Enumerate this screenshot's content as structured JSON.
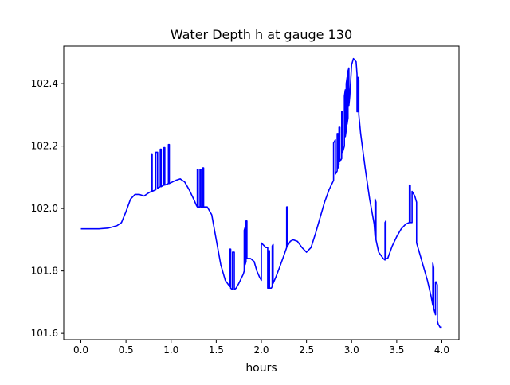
{
  "chart_data": {
    "type": "line",
    "title": "Water Depth h at gauge 130",
    "xlabel": "hours",
    "ylabel": "",
    "xlim": [
      -0.19,
      4.19
    ],
    "ylim": [
      101.58,
      102.52
    ],
    "xticks": [
      0.0,
      0.5,
      1.0,
      1.5,
      2.0,
      2.5,
      3.0,
      3.5,
      4.0
    ],
    "xtick_labels": [
      "0.0",
      "0.5",
      "1.0",
      "1.5",
      "2.0",
      "2.5",
      "3.0",
      "3.5",
      "4.0"
    ],
    "yticks": [
      101.6,
      101.8,
      102.0,
      102.2,
      102.4
    ],
    "ytick_labels": [
      "101.6",
      "101.8",
      "102.0",
      "102.2",
      "102.4"
    ],
    "grid": false,
    "legend": "none",
    "series": [
      {
        "color": "#0000ff",
        "points": [
          [
            0.0,
            101.935
          ],
          [
            0.1,
            101.935
          ],
          [
            0.2,
            101.935
          ],
          [
            0.3,
            101.937
          ],
          [
            0.4,
            101.945
          ],
          [
            0.45,
            101.955
          ],
          [
            0.5,
            101.99
          ],
          [
            0.55,
            102.03
          ],
          [
            0.6,
            102.045
          ],
          [
            0.65,
            102.045
          ],
          [
            0.7,
            102.04
          ],
          [
            0.75,
            102.05
          ],
          [
            0.78,
            102.055
          ],
          [
            0.78,
            102.175
          ],
          [
            0.79,
            102.175
          ],
          [
            0.79,
            102.055
          ],
          [
            0.83,
            102.06
          ],
          [
            0.83,
            102.18
          ],
          [
            0.85,
            102.18
          ],
          [
            0.85,
            102.065
          ],
          [
            0.88,
            102.07
          ],
          [
            0.88,
            102.19
          ],
          [
            0.89,
            102.19
          ],
          [
            0.89,
            102.07
          ],
          [
            0.92,
            102.075
          ],
          [
            0.92,
            102.195
          ],
          [
            0.93,
            102.195
          ],
          [
            0.93,
            102.075
          ],
          [
            0.97,
            102.08
          ],
          [
            0.97,
            102.205
          ],
          [
            0.98,
            102.205
          ],
          [
            0.98,
            102.08
          ],
          [
            1.05,
            102.09
          ],
          [
            1.1,
            102.095
          ],
          [
            1.15,
            102.085
          ],
          [
            1.2,
            102.06
          ],
          [
            1.25,
            102.03
          ],
          [
            1.28,
            102.01
          ],
          [
            1.29,
            102.005
          ],
          [
            1.29,
            102.125
          ],
          [
            1.3,
            102.125
          ],
          [
            1.3,
            102.005
          ],
          [
            1.32,
            102.005
          ],
          [
            1.32,
            102.125
          ],
          [
            1.33,
            102.125
          ],
          [
            1.33,
            102.005
          ],
          [
            1.35,
            102.005
          ],
          [
            1.35,
            102.13
          ],
          [
            1.36,
            102.13
          ],
          [
            1.36,
            102.005
          ],
          [
            1.4,
            102.005
          ],
          [
            1.45,
            101.98
          ],
          [
            1.5,
            101.9
          ],
          [
            1.55,
            101.82
          ],
          [
            1.6,
            101.77
          ],
          [
            1.65,
            101.75
          ],
          [
            1.65,
            101.87
          ],
          [
            1.66,
            101.87
          ],
          [
            1.66,
            101.745
          ],
          [
            1.68,
            101.74
          ],
          [
            1.68,
            101.86
          ],
          [
            1.7,
            101.86
          ],
          [
            1.7,
            101.74
          ],
          [
            1.72,
            101.745
          ],
          [
            1.75,
            101.76
          ],
          [
            1.8,
            101.79
          ],
          [
            1.81,
            101.8
          ],
          [
            1.81,
            101.93
          ],
          [
            1.82,
            101.94
          ],
          [
            1.82,
            101.82
          ],
          [
            1.83,
            101.83
          ],
          [
            1.83,
            101.96
          ],
          [
            1.84,
            101.96
          ],
          [
            1.84,
            101.84
          ],
          [
            1.88,
            101.84
          ],
          [
            1.92,
            101.83
          ],
          [
            1.95,
            101.8
          ],
          [
            1.98,
            101.78
          ],
          [
            2.0,
            101.77
          ],
          [
            2.0,
            101.89
          ],
          [
            2.05,
            101.875
          ],
          [
            2.07,
            101.875
          ],
          [
            2.07,
            101.745
          ],
          [
            2.08,
            101.745
          ],
          [
            2.08,
            101.865
          ],
          [
            2.09,
            101.865
          ],
          [
            2.09,
            101.745
          ],
          [
            2.11,
            101.745
          ],
          [
            2.12,
            101.75
          ],
          [
            2.12,
            101.88
          ],
          [
            2.13,
            101.885
          ],
          [
            2.13,
            101.76
          ],
          [
            2.16,
            101.78
          ],
          [
            2.2,
            101.81
          ],
          [
            2.25,
            101.85
          ],
          [
            2.28,
            101.875
          ],
          [
            2.28,
            102.005
          ],
          [
            2.29,
            102.005
          ],
          [
            2.29,
            101.88
          ],
          [
            2.32,
            101.895
          ],
          [
            2.35,
            101.9
          ],
          [
            2.4,
            101.895
          ],
          [
            2.45,
            101.875
          ],
          [
            2.5,
            101.86
          ],
          [
            2.55,
            101.875
          ],
          [
            2.6,
            101.92
          ],
          [
            2.65,
            101.97
          ],
          [
            2.7,
            102.02
          ],
          [
            2.75,
            102.06
          ],
          [
            2.8,
            102.09
          ],
          [
            2.8,
            102.21
          ],
          [
            2.82,
            102.22
          ],
          [
            2.82,
            102.11
          ],
          [
            2.84,
            102.12
          ],
          [
            2.84,
            102.24
          ],
          [
            2.85,
            102.24
          ],
          [
            2.85,
            102.13
          ],
          [
            2.86,
            102.14
          ],
          [
            2.86,
            102.26
          ],
          [
            2.87,
            102.26
          ],
          [
            2.87,
            102.15
          ],
          [
            2.89,
            102.16
          ],
          [
            2.89,
            102.31
          ],
          [
            2.9,
            102.31
          ],
          [
            2.9,
            102.18
          ],
          [
            2.92,
            102.2
          ],
          [
            2.92,
            102.36
          ],
          [
            2.93,
            102.38
          ],
          [
            2.93,
            102.23
          ],
          [
            2.94,
            102.25
          ],
          [
            2.94,
            102.4
          ],
          [
            2.95,
            102.42
          ],
          [
            2.95,
            102.27
          ],
          [
            2.96,
            102.29
          ],
          [
            2.96,
            102.44
          ],
          [
            2.97,
            102.45
          ],
          [
            2.97,
            102.33
          ],
          [
            2.98,
            102.36
          ],
          [
            3.0,
            102.46
          ],
          [
            3.02,
            102.48
          ],
          [
            3.05,
            102.47
          ],
          [
            3.06,
            102.43
          ],
          [
            3.06,
            102.31
          ],
          [
            3.07,
            102.31
          ],
          [
            3.07,
            102.42
          ],
          [
            3.08,
            102.41
          ],
          [
            3.08,
            102.3
          ],
          [
            3.1,
            102.24
          ],
          [
            3.15,
            102.13
          ],
          [
            3.2,
            102.03
          ],
          [
            3.25,
            101.95
          ],
          [
            3.26,
            101.91
          ],
          [
            3.26,
            102.03
          ],
          [
            3.27,
            102.02
          ],
          [
            3.27,
            101.9
          ],
          [
            3.3,
            101.86
          ],
          [
            3.35,
            101.84
          ],
          [
            3.37,
            101.835
          ],
          [
            3.37,
            101.955
          ],
          [
            3.38,
            101.96
          ],
          [
            3.38,
            101.84
          ],
          [
            3.4,
            101.84
          ],
          [
            3.45,
            101.88
          ],
          [
            3.5,
            101.91
          ],
          [
            3.55,
            101.935
          ],
          [
            3.6,
            101.95
          ],
          [
            3.64,
            101.955
          ],
          [
            3.64,
            102.075
          ],
          [
            3.65,
            102.075
          ],
          [
            3.65,
            101.955
          ],
          [
            3.67,
            101.955
          ],
          [
            3.67,
            102.055
          ],
          [
            3.7,
            102.04
          ],
          [
            3.72,
            102.02
          ],
          [
            3.72,
            101.89
          ],
          [
            3.78,
            101.83
          ],
          [
            3.84,
            101.77
          ],
          [
            3.88,
            101.72
          ],
          [
            3.9,
            101.69
          ],
          [
            3.9,
            101.825
          ],
          [
            3.91,
            101.81
          ],
          [
            3.91,
            101.68
          ],
          [
            3.93,
            101.66
          ],
          [
            3.93,
            101.765
          ],
          [
            3.94,
            101.765
          ],
          [
            3.95,
            101.755
          ],
          [
            3.95,
            101.64
          ],
          [
            3.96,
            101.63
          ],
          [
            3.98,
            101.62
          ],
          [
            4.0,
            101.62
          ]
        ]
      }
    ]
  }
}
